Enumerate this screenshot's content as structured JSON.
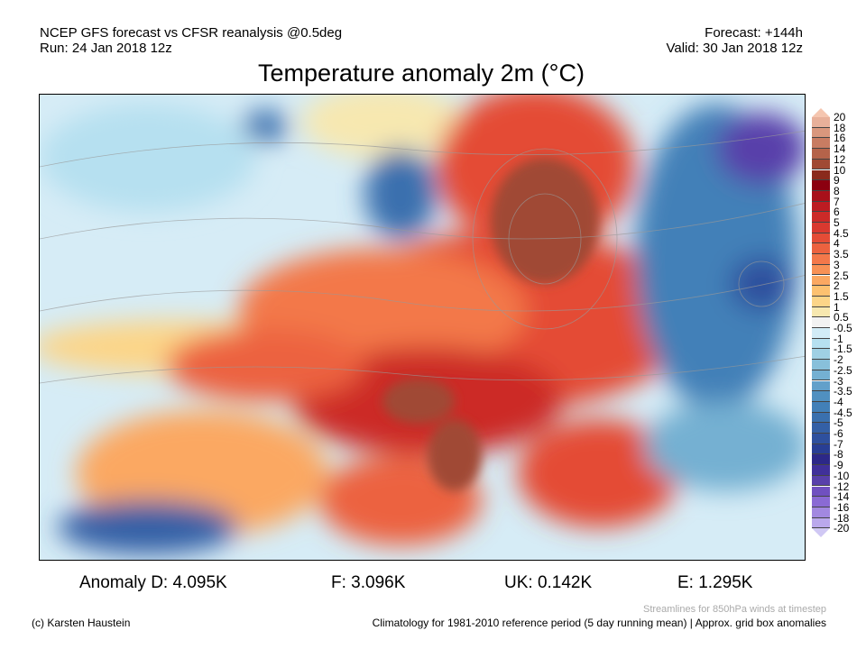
{
  "header": {
    "line1_left": "NCEP GFS forecast vs CFSR reanalysis @0.5deg",
    "line2_left": "Run: 24 Jan 2018 12z",
    "line1_right": "Forecast: +144h",
    "line2_right": "Valid: 30 Jan 2018 12z"
  },
  "title": "Temperature anomaly 2m (°C)",
  "colorbar": {
    "labels": [
      "20",
      "18",
      "16",
      "14",
      "12",
      "10",
      "9",
      "8",
      "7",
      "6",
      "5",
      "4.5",
      "4",
      "3.5",
      "3",
      "2.5",
      "2",
      "1.5",
      "1",
      "0.5",
      "-0.5",
      "-1",
      "-1.5",
      "-2",
      "-2.5",
      "-3",
      "-3.5",
      "-4",
      "-4.5",
      "-5",
      "-6",
      "-7",
      "-8",
      "-9",
      "-10",
      "-12",
      "-14",
      "-16",
      "-18",
      "-20"
    ],
    "top_color": "#f5c6b0",
    "bottom_color": "#d0c8f4",
    "colors": [
      "#e8b09a",
      "#d9977d",
      "#c87c62",
      "#b5634a",
      "#a04a34",
      "#8a2a1c",
      "#8b0010",
      "#a8101a",
      "#bc1c22",
      "#cc2a28",
      "#d9392f",
      "#e44c36",
      "#ec623f",
      "#f3784a",
      "#f89155",
      "#fba862",
      "#fdc170",
      "#fcd588",
      "#f7e8b0",
      "#f2f2f2",
      "#d2ecf7",
      "#b6e0f0",
      "#9fd0e4",
      "#88c0da",
      "#74b0d2",
      "#62a0ca",
      "#5090c0",
      "#4280b8",
      "#3a70ae",
      "#3460a6",
      "#2e509e",
      "#283e94",
      "#2c2888",
      "#40309a",
      "#5840aa",
      "#7050c0",
      "#8a6ad4",
      "#a288e0",
      "#baa8ec"
    ]
  },
  "anomalies": [
    {
      "label": "Anomaly D: 4.095K"
    },
    {
      "label": "F: 3.096K"
    },
    {
      "label": "UK: 0.142K"
    },
    {
      "label": "E: 1.295K"
    }
  ],
  "footer": {
    "credit": "(c) Karsten Haustein",
    "streamlines_note": "Streamlines for 850hPa winds at timestep",
    "climatology_note": "Climatology for 1981-2010 reference period (5 day running mean) | Approx. grid box anomalies"
  }
}
